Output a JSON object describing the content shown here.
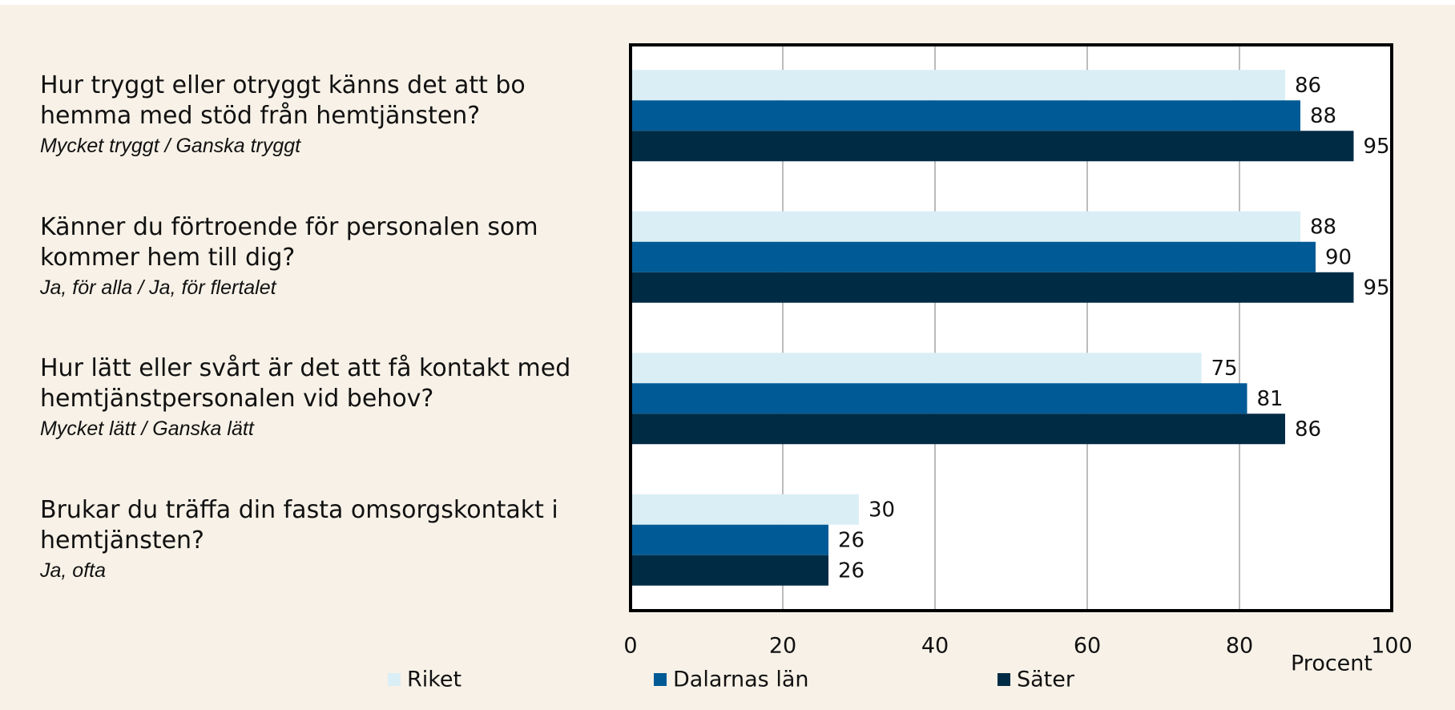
{
  "chart_data": {
    "type": "bar",
    "orientation": "horizontal",
    "categories": [
      "Hur tryggt eller otryggt känns det att bo hemma med stöd från hemtjänsten?",
      "Känner du förtroende för personalen som kommer hem till dig?",
      "Hur lätt eller svårt är det att få kontakt med hemtjänstpersonalen vid behov?",
      "Brukar du träffa din fasta omsorgskontakt i hemtjänsten?"
    ],
    "category_notes": [
      "Mycket tryggt / Ganska tryggt",
      "Ja, för alla / Ja, för flertalet",
      "Mycket lätt / Ganska lätt",
      "Ja, ofta"
    ],
    "series": [
      {
        "name": "Riket",
        "color": "#daeef5",
        "values": [
          86,
          88,
          75,
          30
        ]
      },
      {
        "name": "Dalarnas län",
        "color": "#005a96",
        "values": [
          88,
          90,
          81,
          26
        ]
      },
      {
        "name": "Säter",
        "color": "#002b45",
        "values": [
          95,
          95,
          86,
          26
        ]
      }
    ],
    "xlim": [
      0,
      100
    ],
    "xticks": [
      0,
      20,
      40,
      60,
      80,
      100
    ],
    "xlabel": "Procent",
    "grid": true,
    "legend": "bottom"
  }
}
